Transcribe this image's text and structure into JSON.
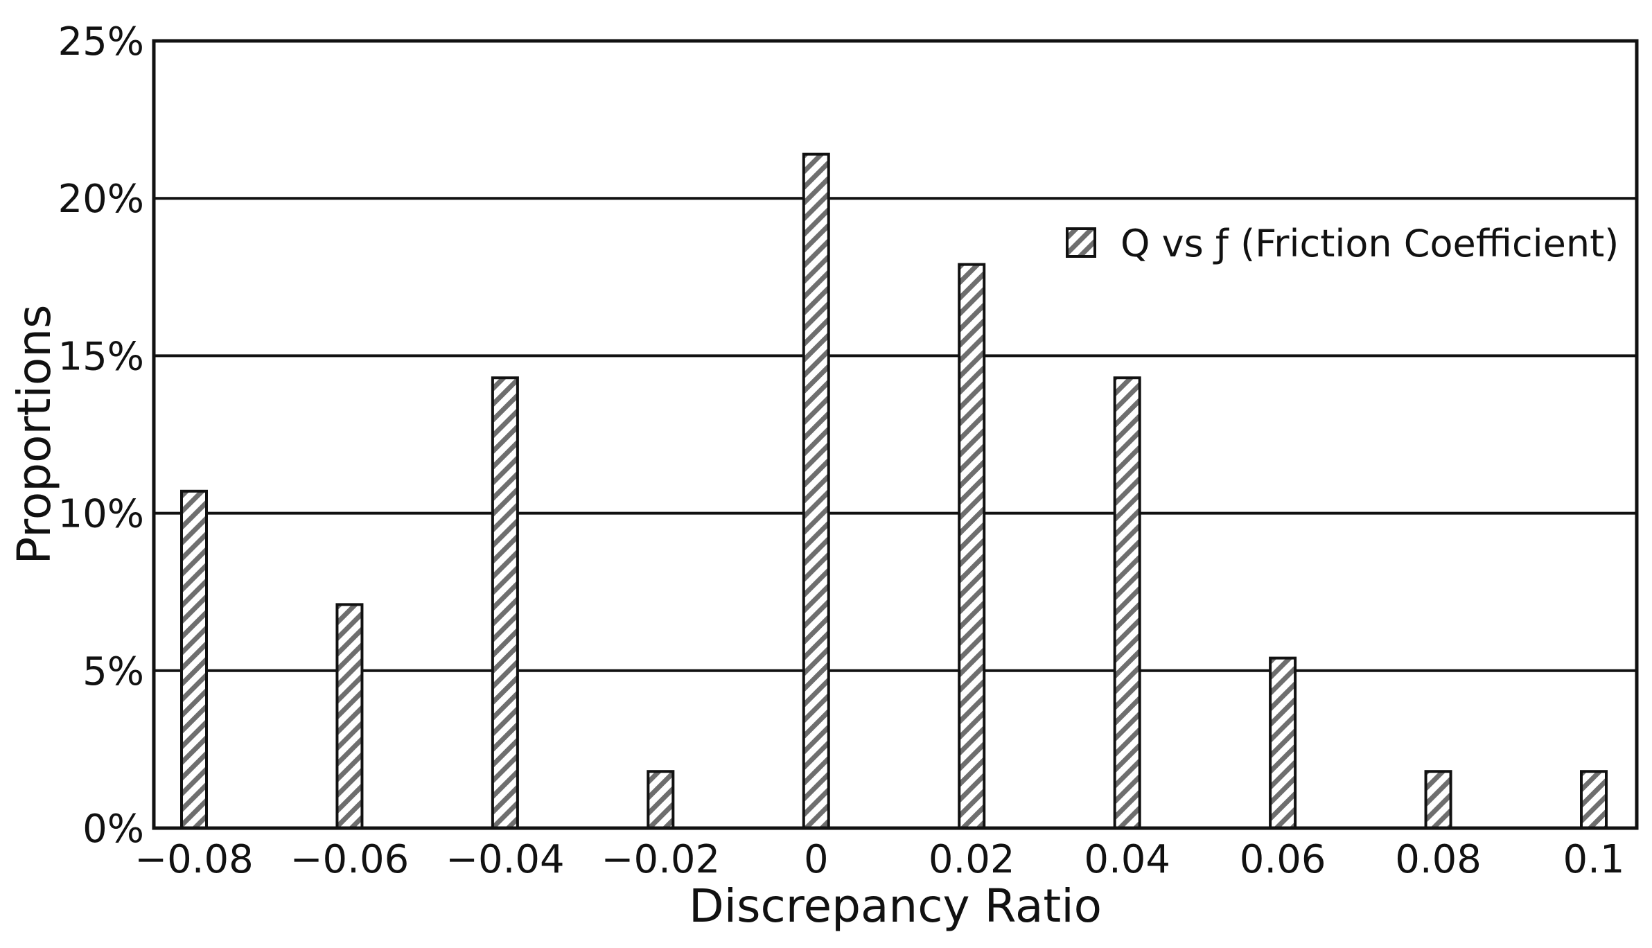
{
  "chart_data": {
    "type": "bar",
    "title": "",
    "xlabel": "Discrepancy Ratio",
    "ylabel": "Proportions",
    "x_tick_labels": [
      "−0.08",
      "−0.06",
      "−0.04",
      "−0.02",
      "0",
      "0.02",
      "0.04",
      "0.06",
      "0.08",
      "0.1"
    ],
    "y_tick_labels": [
      "0%",
      "5%",
      "10%",
      "15%",
      "20%",
      "25%"
    ],
    "y_ticks": [
      0,
      5,
      10,
      15,
      20,
      25
    ],
    "ylim": [
      0,
      25
    ],
    "x": [
      -0.08,
      -0.06,
      -0.04,
      -0.02,
      0,
      0.02,
      0.04,
      0.06,
      0.08,
      0.1
    ],
    "series": [
      {
        "name": "Q vs f (Friction Coefficient)",
        "values": [
          10.7,
          7.1,
          14.3,
          1.8,
          21.4,
          17.9,
          14.3,
          5.4,
          1.8,
          1.8
        ]
      }
    ],
    "legend": {
      "position": "top-right",
      "label": "Q vs ƒ (Friction Coefficient)"
    },
    "grid": {
      "horizontal": true,
      "vertical": false
    },
    "colors": {
      "bar_hatch": "#6e6e6e",
      "bar_fill": "#ffffff",
      "bar_edge": "#111111",
      "grid": "#111111",
      "axes": "#111111"
    }
  }
}
